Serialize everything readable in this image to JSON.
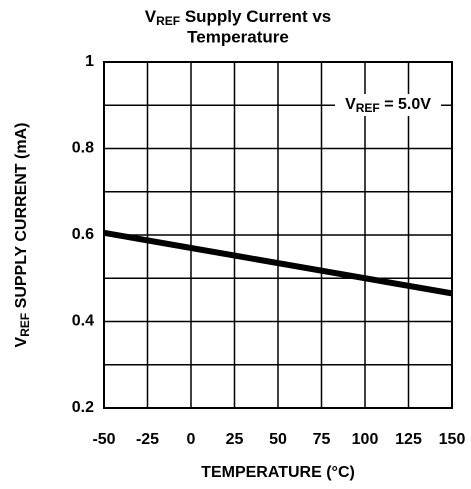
{
  "chart_data": {
    "type": "line",
    "title_prefix": "V",
    "title_subscript": "REF",
    "title_rest": " Supply Current vs",
    "title_line2": "Temperature",
    "ylabel_prefix": "V",
    "ylabel_subscript": "REF",
    "ylabel_rest": " SUPPLY CURRENT (mA)",
    "xlabel": "TEMPERATURE (°C)",
    "annotation_prefix": "V",
    "annotation_subscript": "REF",
    "annotation_rest": " = 5.0V",
    "x": [
      -50,
      150
    ],
    "series": [
      {
        "color": "#000000",
        "values": [
          0.605,
          0.465
        ]
      }
    ],
    "xlim": [
      -50,
      150
    ],
    "xticks": [
      -50,
      -25,
      0,
      25,
      50,
      75,
      100,
      125,
      150
    ],
    "ylim": [
      0.2,
      1
    ],
    "yticks": [
      0.2,
      0.4,
      0.6,
      0.8,
      1
    ],
    "y_minor_ticks": [
      0.3,
      0.5,
      0.7,
      0.9
    ],
    "grid": true
  }
}
